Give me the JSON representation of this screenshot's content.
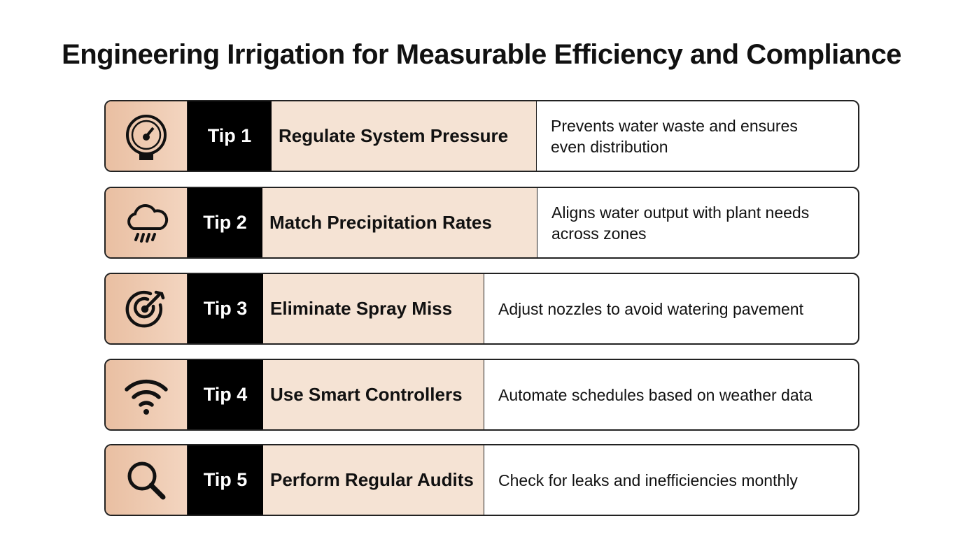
{
  "title": "Engineering Irrigation for Measurable Efficiency and Compliance",
  "tips": [
    {
      "label": "Tip 1",
      "heading": "Regulate System Pressure",
      "description": "Prevents water waste and ensures even distribution"
    },
    {
      "label": "Tip 2",
      "heading": "Match Precipitation Rates",
      "description": "Aligns water output with plant needs across zones"
    },
    {
      "label": "Tip 3",
      "heading": "Eliminate Spray Miss",
      "description": "Adjust nozzles to avoid watering pavement"
    },
    {
      "label": "Tip 4",
      "heading": "Use Smart Controllers",
      "description": "Automate schedules based on weather data"
    },
    {
      "label": "Tip 5",
      "heading": "Perform Regular Audits",
      "description": "Check for leaks and inefficiencies monthly"
    }
  ]
}
